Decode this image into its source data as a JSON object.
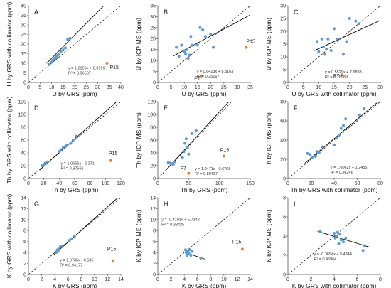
{
  "colors": {
    "point": "#5b9bd5",
    "outlier": "#ed7d31",
    "line": "#000000",
    "axis": "#555555"
  },
  "chart_data": [
    {
      "type": "scatter",
      "panel": "A",
      "xlabel": "U by GRS (ppm)",
      "ylabel": "U by GRS with collimator (ppm)",
      "xlim": [
        0,
        40
      ],
      "ylim": [
        0,
        40
      ],
      "xticks": [
        0,
        5,
        10,
        15,
        20,
        25,
        30,
        35,
        40
      ],
      "yticks": [
        0,
        5,
        10,
        15,
        20,
        25,
        30,
        35,
        40
      ],
      "points": [
        [
          9,
          9.5
        ],
        [
          10,
          10.5
        ],
        [
          10.5,
          11.5
        ],
        [
          11,
          12
        ],
        [
          11.5,
          12.8
        ],
        [
          12,
          13.5
        ],
        [
          12.5,
          14
        ],
        [
          13,
          14.5
        ],
        [
          14,
          16
        ],
        [
          15,
          17
        ],
        [
          16,
          18
        ],
        [
          17,
          22.5
        ],
        [
          18,
          23
        ]
      ],
      "outliers": [
        {
          "x": 34,
          "y": 10,
          "label": "P15"
        }
      ],
      "fit": {
        "slope": 1.2159,
        "intercept": 0.3799
      },
      "equation": "y = 1.2159x + 0.3799",
      "r2": "R² = 0.96507"
    },
    {
      "type": "scatter",
      "panel": "B",
      "xlabel": "U by GRS (ppm)",
      "ylabel": "U by ICP-MS (ppm)",
      "xlim": [
        0,
        35
      ],
      "ylim": [
        0,
        35
      ],
      "xticks": [
        0,
        5,
        10,
        15,
        20,
        25,
        30,
        35
      ],
      "yticks": [
        0,
        5,
        10,
        15,
        20,
        25,
        30,
        35
      ],
      "points": [
        [
          7,
          16
        ],
        [
          8,
          12
        ],
        [
          9,
          17
        ],
        [
          10,
          14
        ],
        [
          10.5,
          13
        ],
        [
          11,
          15
        ],
        [
          11.5,
          11
        ],
        [
          12,
          12.5
        ],
        [
          12.5,
          21
        ],
        [
          13,
          17
        ],
        [
          15,
          17
        ],
        [
          16,
          25
        ],
        [
          17,
          24
        ],
        [
          18,
          21
        ],
        [
          20,
          22
        ],
        [
          21,
          16
        ]
      ],
      "outliers": [
        {
          "x": 16.5,
          "y": 3,
          "label": "P7"
        },
        {
          "x": 33.5,
          "y": 16,
          "label": "P15"
        }
      ],
      "fit": {
        "slope": 0.6423,
        "intercept": 8.3163
      },
      "equation": "y = 0.6423x + 8.3163",
      "r2": "R² = 0.25167"
    },
    {
      "type": "scatter",
      "panel": "C",
      "xlabel": "U by GRS with collimator (ppm)",
      "ylabel": "U by ICP-MS (ppm)",
      "xlim": [
        0,
        30
      ],
      "ylim": [
        0,
        30
      ],
      "xticks": [
        0,
        5,
        10,
        15,
        20,
        25,
        30
      ],
      "yticks": [
        0,
        5,
        10,
        15,
        20,
        25,
        30
      ],
      "points": [
        [
          9.5,
          16
        ],
        [
          10,
          12
        ],
        [
          11,
          17
        ],
        [
          11.5,
          14
        ],
        [
          12,
          11
        ],
        [
          12.5,
          13
        ],
        [
          13,
          17
        ],
        [
          14,
          12.5
        ],
        [
          15,
          21
        ],
        [
          16,
          17
        ],
        [
          18,
          11
        ],
        [
          19,
          16
        ],
        [
          20,
          25
        ],
        [
          22,
          24
        ],
        [
          23,
          23
        ]
      ],
      "outliers": [
        {
          "x": 17.5,
          "y": 3,
          "label": "P7"
        }
      ],
      "fit": {
        "slope": 0.5529,
        "intercept": 7.6888
      },
      "equation": "y = 0.5529x + 7.6888",
      "r2": "R² = 0.28989"
    },
    {
      "type": "scatter",
      "panel": "D",
      "xlabel": "Th by GRS (ppm)",
      "ylabel": "Th by GRS with collimator (ppm)",
      "xlim": [
        0,
        120
      ],
      "ylim": [
        0,
        120
      ],
      "xticks": [
        0,
        20,
        40,
        60,
        80,
        100,
        120
      ],
      "yticks": [
        0,
        20,
        40,
        60,
        80,
        100,
        120
      ],
      "points": [
        [
          18,
          20
        ],
        [
          20,
          22
        ],
        [
          22,
          24
        ],
        [
          25,
          26
        ],
        [
          40,
          42
        ],
        [
          42,
          45
        ],
        [
          45,
          48
        ],
        [
          48,
          50
        ],
        [
          50,
          52
        ],
        [
          55,
          55
        ],
        [
          58,
          60
        ],
        [
          62,
          66
        ]
      ],
      "outliers": [
        {
          "x": 107,
          "y": 28,
          "label": "P15"
        }
      ],
      "fit": {
        "slope": 1.0666,
        "intercept": -2.271
      },
      "equation": "y = 1.0666x - 2.271",
      "r2": "R² = 0.97566"
    },
    {
      "type": "scatter",
      "panel": "E",
      "xlabel": "Th by GRS (ppm)",
      "ylabel": "Th by ICP-MS (ppm)",
      "xlim": [
        0,
        150
      ],
      "ylim": [
        0,
        120
      ],
      "xticks": [
        0,
        50,
        100,
        150
      ],
      "yticks": [
        0,
        20,
        40,
        60,
        80,
        100,
        120
      ],
      "points": [
        [
          17,
          25
        ],
        [
          20,
          24
        ],
        [
          22,
          23
        ],
        [
          25,
          22
        ],
        [
          27,
          26
        ],
        [
          40,
          33
        ],
        [
          42,
          42
        ],
        [
          44,
          55
        ],
        [
          46,
          62
        ],
        [
          48,
          48
        ],
        [
          50,
          38
        ],
        [
          55,
          70
        ],
        [
          62,
          75
        ]
      ],
      "outliers": [
        {
          "x": 50,
          "y": 8,
          "label": "P7"
        },
        {
          "x": 107,
          "y": 35,
          "label": "P15"
        }
      ],
      "fit": {
        "slope": 1.0471,
        "intercept": -0.6768
      },
      "equation": "y = 1.0471x - 0.6768",
      "r2": "R² = 0.80437"
    },
    {
      "type": "scatter",
      "panel": "F",
      "xlabel": "Th by GRS with collimator (ppm)",
      "ylabel": "Th by ICP-MS (ppm)",
      "xlim": [
        0,
        80
      ],
      "ylim": [
        0,
        80
      ],
      "xticks": [
        0,
        20,
        40,
        60,
        80
      ],
      "yticks": [
        0,
        20,
        40,
        60,
        80
      ],
      "points": [
        [
          17,
          26
        ],
        [
          19,
          25
        ],
        [
          21,
          22
        ],
        [
          24,
          23
        ],
        [
          25,
          28
        ],
        [
          27,
          27
        ],
        [
          30,
          33
        ],
        [
          40,
          35
        ],
        [
          42,
          42
        ],
        [
          44,
          45
        ],
        [
          46,
          52
        ],
        [
          48,
          55
        ],
        [
          50,
          62
        ],
        [
          62,
          66
        ],
        [
          66,
          73
        ]
      ],
      "outliers": [],
      "fit": {
        "slope": 1.0062,
        "intercept": 1.2455
      },
      "equation": "y = 1.0062x + 1.2455",
      "r2": "R² = 0.86246"
    },
    {
      "type": "scatter",
      "panel": "G",
      "xlabel": "K by GRS (ppm)",
      "ylabel": "K by GRS with collimator (ppm)",
      "xlim": [
        0,
        14
      ],
      "ylim": [
        0,
        14
      ],
      "xticks": [
        0,
        2,
        4,
        6,
        8,
        10,
        12,
        14
      ],
      "yticks": [
        0,
        2,
        4,
        6,
        8,
        10,
        12,
        14
      ],
      "points": [
        [
          4.2,
          4.0
        ],
        [
          4.3,
          4.2
        ],
        [
          4.4,
          4.5
        ],
        [
          4.5,
          4.3
        ],
        [
          4.6,
          4.6
        ],
        [
          4.8,
          5.0
        ],
        [
          5.0,
          5.2
        ],
        [
          6.2,
          6.2
        ],
        [
          6.5,
          6.5
        ],
        [
          7.0,
          7.0
        ]
      ],
      "outliers": [
        {
          "x": 12.8,
          "y": 2.5,
          "label": "P15"
        }
      ],
      "fit": {
        "slope": 1.0735,
        "intercept": -0.535
      },
      "equation": "y = 1.0735x - 0.535",
      "r2": "R² = 0.94177"
    },
    {
      "type": "scatter",
      "panel": "H",
      "xlabel": "K by GRS (ppm)",
      "ylabel": "K by ICP-MS (ppm)",
      "xlim": [
        0,
        14
      ],
      "ylim": [
        0,
        14
      ],
      "xticks": [
        0,
        2,
        4,
        6,
        8,
        10,
        12,
        14
      ],
      "yticks": [
        0,
        2,
        4,
        6,
        8,
        10,
        12,
        14
      ],
      "points": [
        [
          4.2,
          4.5
        ],
        [
          4.3,
          4.0
        ],
        [
          4.4,
          3.5
        ],
        [
          4.5,
          4.2
        ],
        [
          4.6,
          4.0
        ],
        [
          4.7,
          3.8
        ],
        [
          4.8,
          4.5
        ],
        [
          5.0,
          3.5
        ],
        [
          5.2,
          4.2
        ],
        [
          6.5,
          3.0
        ]
      ],
      "outliers": [
        {
          "x": 12.8,
          "y": 4.6,
          "label": "P15"
        }
      ],
      "fit": {
        "slope": -0.4101,
        "intercept": 5.7242
      },
      "equation": "y = -0.4101x + 5.7242",
      "r2": "R² = 0.38425"
    },
    {
      "type": "scatter",
      "panel": "I",
      "xlabel": "K by GRS with collimator (ppm)",
      "ylabel": "K by ICP-MS (ppm)",
      "xlim": [
        0,
        8
      ],
      "ylim": [
        0,
        8
      ],
      "xticks": [
        0,
        2,
        4,
        6,
        8
      ],
      "yticks": [
        0,
        2,
        4,
        6,
        8
      ],
      "points": [
        [
          2.8,
          4.5
        ],
        [
          4.0,
          4.3
        ],
        [
          4.1,
          3.8
        ],
        [
          4.2,
          4.0
        ],
        [
          4.3,
          4.4
        ],
        [
          4.4,
          3.2
        ],
        [
          4.5,
          4.2
        ],
        [
          4.6,
          3.6
        ],
        [
          4.8,
          3.4
        ],
        [
          5.0,
          3.8
        ],
        [
          6.5,
          2.5
        ],
        [
          6.6,
          3.0
        ]
      ],
      "outliers": [],
      "fit": {
        "slope": -0.3654,
        "intercept": 5.4344
      },
      "equation": "y = -0.3654x + 5.4344",
      "r2": "R² = 0.45964"
    }
  ]
}
